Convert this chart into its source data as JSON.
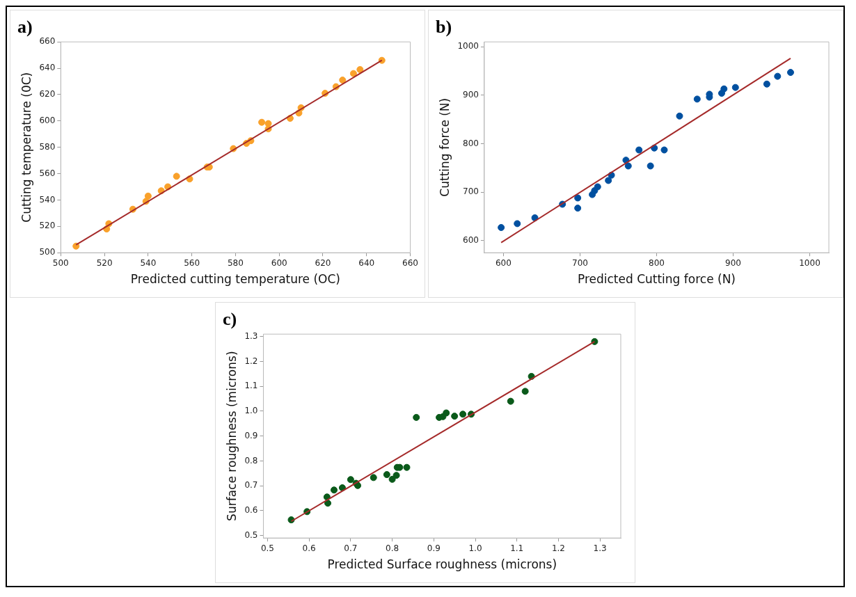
{
  "chart_data": [
    {
      "type": "scatter",
      "title": "a)",
      "xlabel": "Predicted cutting temperature (OC)",
      "ylabel": "Cutting temperature (0C)",
      "xlim": [
        500,
        660
      ],
      "xticks": [
        500,
        520,
        540,
        560,
        580,
        600,
        620,
        640,
        660
      ],
      "ylim": [
        500,
        660
      ],
      "yticks": [
        500,
        520,
        540,
        560,
        580,
        600,
        620,
        640,
        660
      ],
      "grid": false,
      "legend": false,
      "series": [
        {
          "type": "scatter",
          "marker": "circle",
          "color": "#f9a12b",
          "x": [
            507,
            521,
            522,
            533,
            539,
            540,
            546,
            549,
            553,
            559,
            567,
            568,
            579,
            585,
            587,
            592,
            595,
            595,
            605,
            609,
            610,
            621,
            626,
            629,
            634,
            637,
            647
          ],
          "values": [
            505,
            518,
            522,
            533,
            539,
            543,
            547,
            550,
            558,
            556,
            565,
            565,
            579,
            583,
            585,
            599,
            598,
            594,
            602,
            606,
            610,
            621,
            626,
            631,
            636,
            639,
            646
          ]
        },
        {
          "type": "line",
          "marker": "none",
          "color": "#a52a2a",
          "x": [
            507,
            647
          ],
          "values": [
            506,
            646
          ]
        }
      ]
    },
    {
      "type": "scatter",
      "title": "b)",
      "xlabel": "Predicted Cutting force (N)",
      "ylabel": "Cutting force (N)",
      "xlim": [
        575,
        1025
      ],
      "xticks": [
        600,
        700,
        800,
        900,
        1000
      ],
      "ylim": [
        575,
        1010
      ],
      "yticks": [
        600,
        700,
        800,
        900,
        1000
      ],
      "grid": false,
      "legend": false,
      "series": [
        {
          "type": "scatter",
          "marker": "circle",
          "color": "#0050a0",
          "x": [
            597,
            618,
            641,
            677,
            697,
            697,
            716,
            719,
            723,
            737,
            741,
            760,
            763,
            777,
            792,
            797,
            810,
            830,
            853,
            869,
            869,
            885,
            888,
            903,
            944,
            958,
            975
          ],
          "values": [
            627,
            635,
            647,
            675,
            667,
            688,
            695,
            703,
            711,
            724,
            735,
            766,
            754,
            787,
            754,
            791,
            787,
            857,
            892,
            896,
            902,
            904,
            913,
            916,
            923,
            939,
            947
          ]
        },
        {
          "type": "line",
          "marker": "none",
          "color": "#a52a2a",
          "x": [
            597,
            975
          ],
          "values": [
            596,
            976
          ]
        }
      ]
    },
    {
      "type": "scatter",
      "title": "c)",
      "xlabel": "Predicted Surface roughness (microns)",
      "ylabel": "Surface roughness (microns)",
      "xlim": [
        0.49,
        1.35
      ],
      "xticks": [
        0.5,
        0.6,
        0.7,
        0.8,
        0.9,
        {
          "value": 1,
          "label": "1.0"
        },
        1.1,
        1.2,
        1.3
      ],
      "ylim": [
        0.49,
        1.31
      ],
      "yticks": [
        0.5,
        0.6,
        0.7,
        0.8,
        0.9,
        {
          "value": 1,
          "label": "1.0"
        },
        1.1,
        1.2,
        1.3
      ],
      "grid": false,
      "legend": false,
      "series": [
        {
          "type": "scatter",
          "marker": "circle",
          "color": "#0a5a1a",
          "x": [
            0.557,
            0.595,
            0.643,
            0.645,
            0.66,
            0.68,
            0.7,
            0.713,
            0.717,
            0.755,
            0.787,
            0.8,
            0.81,
            0.812,
            0.818,
            0.835,
            0.858,
            0.913,
            0.922,
            0.93,
            0.95,
            0.97,
            0.99,
            1.085,
            1.12,
            1.135,
            1.287
          ],
          "values": [
            0.563,
            0.596,
            0.655,
            0.63,
            0.683,
            0.692,
            0.725,
            0.71,
            0.701,
            0.733,
            0.745,
            0.726,
            0.742,
            0.774,
            0.774,
            0.774,
            0.975,
            0.975,
            0.978,
            0.993,
            0.98,
            0.988,
            0.988,
            1.04,
            1.08,
            1.14,
            1.28
          ]
        },
        {
          "type": "line",
          "marker": "none",
          "color": "#a52a2a",
          "x": [
            0.557,
            1.287
          ],
          "values": [
            0.557,
            1.28
          ]
        }
      ]
    }
  ]
}
